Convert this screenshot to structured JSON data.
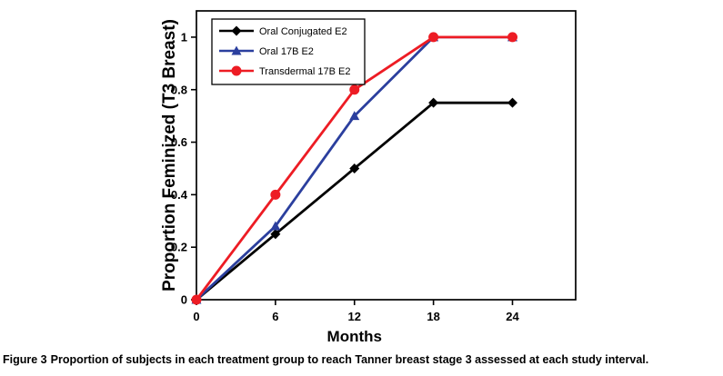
{
  "caption": {
    "label": "Figure 3",
    "text": "Proportion of subjects in each treatment group to reach Tanner breast stage 3 assessed at each study interval."
  },
  "chart_data": {
    "type": "line",
    "title": "",
    "xlabel": "Months",
    "ylabel": "Proportion Feminized (T3 Breast)",
    "x": [
      0,
      6,
      12,
      18,
      24
    ],
    "series": [
      {
        "name": "Oral Conjugated E2",
        "color": "#000000",
        "marker": "diamond",
        "values": [
          0,
          0.25,
          0.5,
          0.75,
          0.75
        ]
      },
      {
        "name": "Oral 17B E2",
        "color": "#2B3F9E",
        "marker": "triangle",
        "values": [
          0,
          0.28,
          0.7,
          1,
          1
        ]
      },
      {
        "name": "Transdermal 17B E2",
        "color": "#ED1C24",
        "marker": "circle",
        "values": [
          0,
          0.4,
          0.8,
          1,
          1
        ]
      }
    ],
    "xlim": [
      0,
      28.8
    ],
    "ylim": [
      0,
      1.1
    ],
    "xticks": [
      0,
      6,
      12,
      18,
      24
    ],
    "yticks": [
      0,
      0.2,
      0.4,
      0.6,
      0.8,
      1
    ],
    "grid": false,
    "legend_position": "top-left"
  }
}
